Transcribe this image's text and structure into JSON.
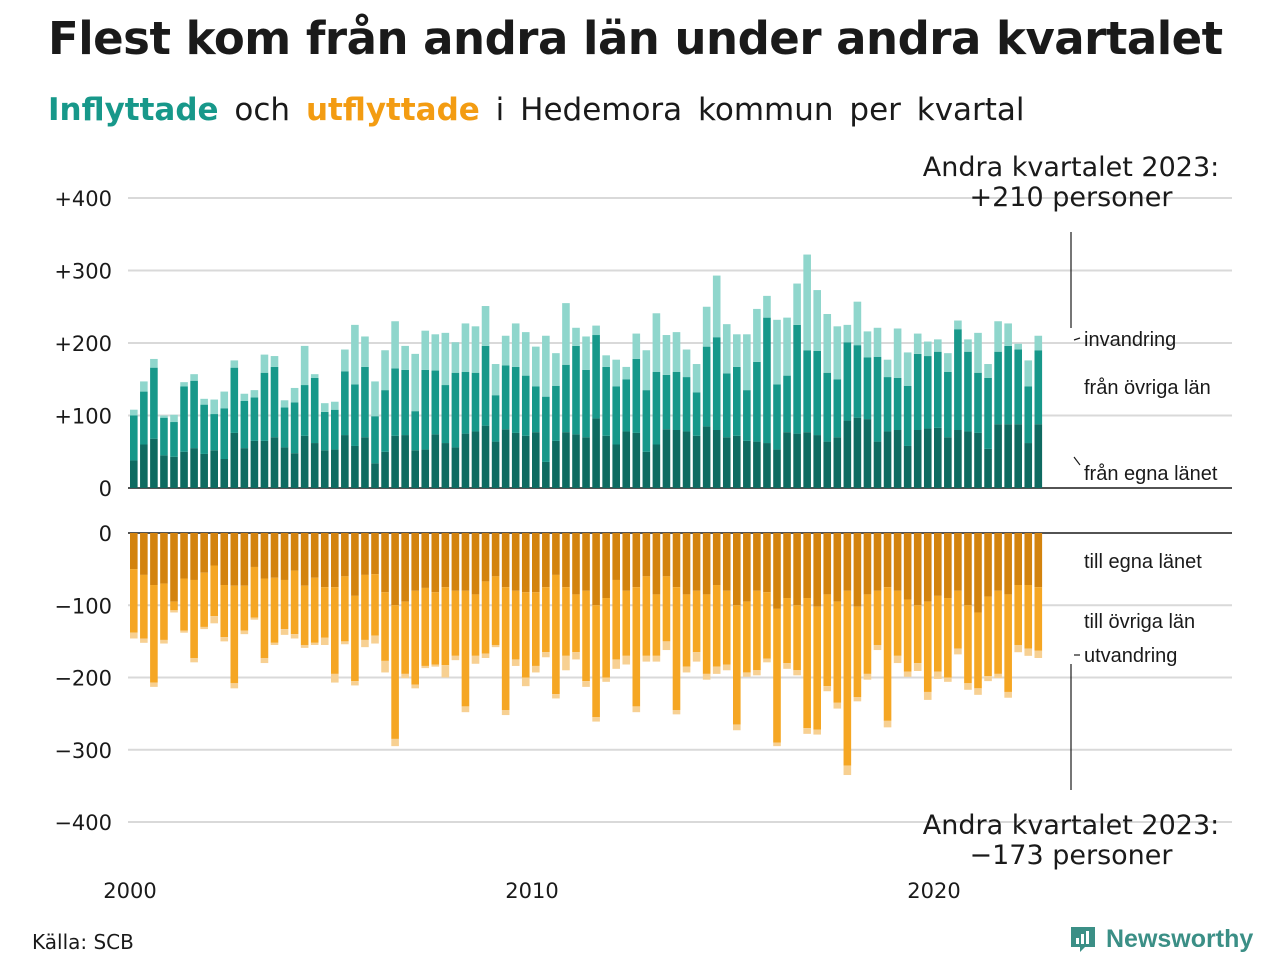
{
  "title": "Flest kom från andra län under andra kvartalet",
  "subtitle": {
    "inflow_word": "Inflyttade",
    "and_word": "och",
    "outflow_word": "utflyttade",
    "rest": "i Hedemora kommun per kvartal"
  },
  "source": "Källa: SCB",
  "brand": {
    "name": "Newsworthy",
    "icon": "newsworthy-logo-icon"
  },
  "colors": {
    "in_own_county": "#0f6b61",
    "in_other_counties": "#17988a",
    "in_immigration": "#8fd6cc",
    "out_own_county": "#d3830e",
    "out_other_counties": "#f5a623",
    "out_emigration": "#f7d092",
    "grid": "#d9d9d9",
    "axis": "#1a1a1a",
    "text": "#1a1a1a"
  },
  "chart_data": {
    "type": "bar",
    "stacked": true,
    "x": {
      "start": "2000 Q1",
      "end": "2023 Q2",
      "ticks": [
        2000,
        2010,
        2020
      ],
      "tick_labels": [
        "2000",
        "2010",
        "2020"
      ]
    },
    "panels": [
      {
        "id": "inflow",
        "ylim": [
          0,
          400
        ],
        "yticks": [
          0,
          100,
          200,
          300,
          400
        ],
        "ytick_labels": [
          "0",
          "+100",
          "+200",
          "+300",
          "+400"
        ],
        "series_labels": [
          "invandring",
          "från övriga län",
          "från egna länet"
        ],
        "annotation": {
          "line1": "Andra kvartalet 2023:",
          "line2": "+210 personer"
        },
        "series": [
          {
            "name": "från egna länet",
            "values": [
              38,
              60,
              68,
              45,
              43,
              50,
              55,
              47,
              52,
              40,
              76,
              55,
              65,
              65,
              70,
              56,
              48,
              72,
              62,
              52,
              53,
              73,
              58,
              70,
              34,
              50,
              72,
              73,
              52,
              53,
              74,
              62,
              56,
              75,
              78,
              86,
              64,
              81,
              76,
              72,
              77,
              36,
              65,
              77,
              74,
              70,
              96,
              72,
              60,
              78,
              76,
              50,
              60,
              81,
              80,
              78,
              72,
              85,
              80,
              70,
              72,
              65,
              64,
              62,
              53,
              77,
              75,
              77,
              73,
              64,
              70,
              93,
              97,
              95,
              64,
              78,
              80,
              58,
              80,
              82,
              83,
              70,
              80,
              78,
              76,
              54,
              88,
              88,
              88,
              62,
              88
            ]
          },
          {
            "name": "från övriga län",
            "values": [
              62,
              73,
              98,
              52,
              48,
              90,
              93,
              68,
              50,
              70,
              90,
              65,
              60,
              94,
              97,
              55,
              70,
              70,
              90,
              53,
              55,
              88,
              85,
              97,
              65,
              85,
              93,
              90,
              54,
              110,
              88,
              80,
              103,
              85,
              81,
              110,
              64,
              88,
              91,
              83,
              63,
              90,
              76,
              93,
              122,
              93,
              115,
              95,
              80,
              72,
              102,
              85,
              100,
              75,
              80,
              75,
              60,
              110,
              128,
              88,
              95,
              70,
              110,
              173,
              90,
              78,
              150,
              113,
              116,
              95,
              80,
              108,
              100,
              85,
              117,
              75,
              72,
              83,
              105,
              100,
              105,
              90,
              139,
              110,
              83,
              98,
              100,
              108,
              103,
              78,
              102
            ]
          },
          {
            "name": "invandring",
            "values": [
              8,
              14,
              12,
              3,
              10,
              6,
              9,
              8,
              20,
              23,
              10,
              10,
              10,
              25,
              15,
              10,
              20,
              54,
              5,
              12,
              11,
              30,
              82,
              42,
              48,
              55,
              65,
              33,
              79,
              54,
              50,
              72,
              42,
              67,
              64,
              55,
              43,
              41,
              60,
              60,
              55,
              84,
              45,
              85,
              25,
              46,
              13,
              16,
              37,
              17,
              35,
              55,
              81,
              55,
              55,
              38,
              39,
              55,
              85,
              68,
              45,
              77,
              73,
              30,
              89,
              80,
              57,
              132,
              84,
              81,
              73,
              24,
              60,
              36,
              40,
              24,
              68,
              46,
              28,
              20,
              17,
              26,
              12,
              17,
              55,
              19,
              42,
              31,
              8,
              36,
              20
            ]
          }
        ]
      },
      {
        "id": "outflow",
        "ylim": [
          -400,
          0
        ],
        "yticks": [
          0,
          -100,
          -200,
          -300,
          -400
        ],
        "ytick_labels": [
          "0",
          "−100",
          "−200",
          "−300",
          "−400"
        ],
        "series_labels": [
          "till egna länet",
          "till övriga län",
          "utvandring"
        ],
        "annotation": {
          "line1": "Andra kvartalet 2023:",
          "line2": "−173 personer"
        },
        "series": [
          {
            "name": "till egna länet",
            "values": [
              -50,
              -58,
              -72,
              -70,
              -95,
              -63,
              -65,
              -55,
              -45,
              -72,
              -73,
              -73,
              -47,
              -63,
              -62,
              -65,
              -52,
              -73,
              -62,
              -75,
              -75,
              -60,
              -87,
              -58,
              -57,
              -82,
              -100,
              -95,
              -80,
              -76,
              -82,
              -75,
              -80,
              -80,
              -85,
              -67,
              -60,
              -75,
              -80,
              -82,
              -82,
              -75,
              -58,
              -75,
              -85,
              -80,
              -100,
              -90,
              -65,
              -80,
              -75,
              -60,
              -85,
              -60,
              -75,
              -85,
              -80,
              -85,
              -72,
              -80,
              -100,
              -95,
              -80,
              -82,
              -105,
              -90,
              -100,
              -90,
              -102,
              -85,
              -95,
              -80,
              -102,
              -85,
              -80,
              -75,
              -80,
              -92,
              -100,
              -95,
              -87,
              -90,
              -80,
              -100,
              -110,
              -88,
              -80,
              -85,
              -72,
              -72,
              -75
            ]
          },
          {
            "name": "till övriga län",
            "values": [
              -88,
              -88,
              -135,
              -78,
              -12,
              -72,
              -108,
              -75,
              -70,
              -72,
              -135,
              -62,
              -70,
              -110,
              -90,
              -68,
              -88,
              -82,
              -90,
              -70,
              -120,
              -90,
              -118,
              -90,
              -85,
              -95,
              -185,
              -100,
              -130,
              -108,
              -100,
              -108,
              -90,
              -160,
              -85,
              -100,
              -95,
              -170,
              -95,
              -118,
              -102,
              -90,
              -165,
              -95,
              -80,
              -125,
              -155,
              -110,
              -110,
              -90,
              -165,
              -110,
              -85,
              -90,
              -170,
              -100,
              -85,
              -110,
              -113,
              -102,
              -165,
              -98,
              -110,
              -92,
              -185,
              -90,
              -90,
              -180,
              -170,
              -127,
              -140,
              -242,
              -125,
              -110,
              -75,
              -185,
              -90,
              -100,
              -80,
              -125,
              -105,
              -110,
              -80,
              -108,
              -105,
              -110,
              -115,
              -135,
              -83,
              -88,
              -88
            ]
          },
          {
            "name": "utvandring",
            "values": [
              -8,
              -6,
              -6,
              -5,
              -3,
              -3,
              -6,
              -3,
              -10,
              -6,
              -7,
              -5,
              -3,
              -7,
              -3,
              -8,
              -6,
              -4,
              -3,
              -10,
              -12,
              -4,
              -6,
              -10,
              -11,
              -16,
              -10,
              -6,
              -5,
              -3,
              -3,
              -17,
              -6,
              -8,
              -11,
              -6,
              -3,
              -7,
              -9,
              -12,
              -9,
              -7,
              -6,
              -20,
              -10,
              -8,
              -6,
              -6,
              -13,
              -12,
              -8,
              -8,
              -8,
              -12,
              -6,
              -8,
              -13,
              -8,
              -10,
              -8,
              -8,
              -6,
              -7,
              -5,
              -5,
              -8,
              -7,
              -8,
              -7,
              -7,
              -8,
              -13,
              -6,
              -8,
              -7,
              -9,
              -10,
              -7,
              -11,
              -11,
              -10,
              -6,
              -8,
              -9,
              -9,
              -7,
              -6,
              -8,
              -10,
              -10,
              -10
            ]
          }
        ]
      }
    ]
  }
}
